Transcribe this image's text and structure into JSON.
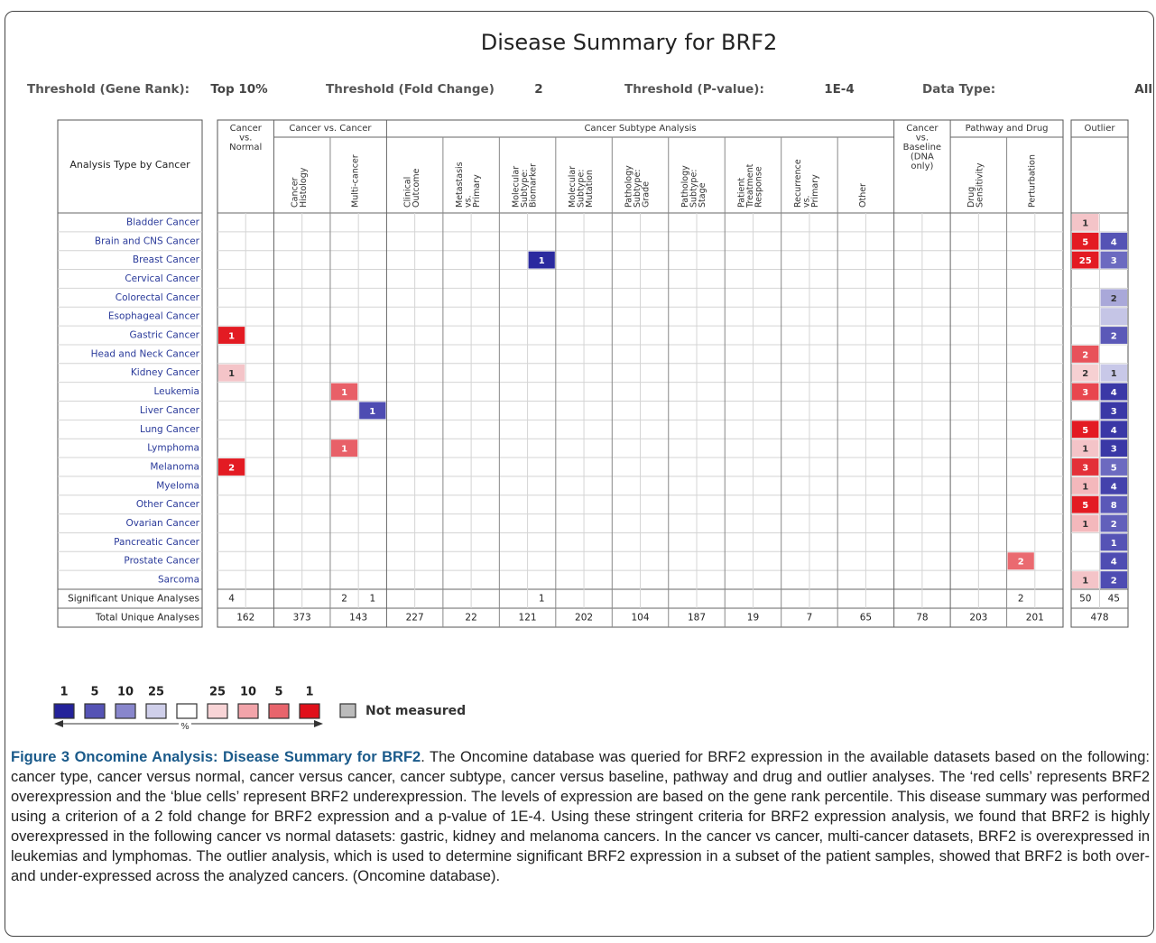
{
  "title": "Disease Summary for BRF2",
  "thresholds": [
    {
      "label": "Threshold (Gene Rank):",
      "value": "Top 10%"
    },
    {
      "label": "Threshold (Fold Change)",
      "value": "2"
    },
    {
      "label": "Threshold (P-value):",
      "value": "1E-4"
    },
    {
      "label": "Data Type:",
      "value": "All"
    }
  ],
  "table": {
    "corner": "Analysis Type by Cancer",
    "groups": [
      {
        "label_lines": [
          "Cancer",
          "vs.",
          "Normal"
        ],
        "columns": []
      },
      {
        "label_lines": [
          "Cancer vs. Cancer"
        ],
        "columns": [
          [
            "Cancer",
            "Histology"
          ],
          [
            "Multi-cancer"
          ]
        ]
      },
      {
        "label_lines": [
          "Cancer Subtype Analysis"
        ],
        "columns": [
          [
            "Clinical",
            "Outcome"
          ],
          [
            "Metastasis",
            "vs.",
            "Primary"
          ],
          [
            "Molecular",
            "Subtype:",
            "Biomarker"
          ],
          [
            "Molecular",
            "Subtype:",
            "Mutation"
          ],
          [
            "Pathology",
            "Subtype:",
            "Grade"
          ],
          [
            "Pathology",
            "Subtype:",
            "Stage"
          ],
          [
            "Patient",
            "Treatment",
            "Response"
          ],
          [
            "Recurrence",
            "vs.",
            "Primary"
          ],
          [
            "Other"
          ]
        ]
      },
      {
        "label_lines": [
          "Cancer",
          "vs.",
          "Baseline",
          "(DNA",
          "only)"
        ],
        "columns": []
      },
      {
        "label_lines": [
          "Pathway and Drug"
        ],
        "columns": [
          [
            "Drug",
            "Sensitivity"
          ],
          [
            "Perturbation"
          ]
        ]
      },
      {
        "label_lines": [
          "Outlier"
        ],
        "columns": []
      }
    ],
    "rows": [
      {
        "name": "Bladder Cancer",
        "cells": [
          {
            "column": 15,
            "direction": "over",
            "value": 1,
            "color": "#f4c4c8"
          }
        ]
      },
      {
        "name": "Brain and CNS Cancer",
        "cells": [
          {
            "column": 15,
            "direction": "over",
            "value": 5,
            "color": "#e31b23"
          },
          {
            "column": 15,
            "direction": "under",
            "value": 4,
            "color": "#5553b5"
          }
        ]
      },
      {
        "name": "Breast Cancer",
        "cells": [
          {
            "column": 5,
            "direction": "under",
            "value": 1,
            "color": "#2b2a9f"
          },
          {
            "column": 15,
            "direction": "over",
            "value": 25,
            "color": "#e31b23"
          },
          {
            "column": 15,
            "direction": "under",
            "value": 3,
            "color": "#6c6ac0"
          }
        ]
      },
      {
        "name": "Cervical Cancer",
        "cells": []
      },
      {
        "name": "Colorectal Cancer",
        "cells": [
          {
            "column": 15,
            "direction": "under",
            "value": 2,
            "color": "#a9a8d9"
          }
        ]
      },
      {
        "name": "Esophageal Cancer",
        "cells": [
          {
            "column": 15,
            "direction": "under",
            "color": "#c5c5e6"
          }
        ]
      },
      {
        "name": "Gastric Cancer",
        "cells": [
          {
            "column": 0,
            "direction": "over",
            "value": 1,
            "color": "#e31b23"
          },
          {
            "column": 15,
            "direction": "under",
            "value": 2,
            "color": "#5b59b8"
          }
        ]
      },
      {
        "name": "Head and Neck Cancer",
        "cells": [
          {
            "column": 15,
            "direction": "over",
            "value": 2,
            "color": "#e8525a"
          }
        ]
      },
      {
        "name": "Kidney Cancer",
        "cells": [
          {
            "column": 0,
            "direction": "over",
            "value": 1,
            "color": "#f4c4c8"
          },
          {
            "column": 15,
            "direction": "over",
            "value": 2,
            "color": "#f6d0d2"
          },
          {
            "column": 15,
            "direction": "under",
            "value": 1,
            "color": "#c8c8e8"
          }
        ]
      },
      {
        "name": "Leukemia",
        "cells": [
          {
            "column": 2,
            "direction": "over",
            "value": 1,
            "color": "#e86068"
          },
          {
            "column": 15,
            "direction": "over",
            "value": 3,
            "color": "#e8464e"
          },
          {
            "column": 15,
            "direction": "under",
            "value": 4,
            "color": "#3a38a6"
          }
        ]
      },
      {
        "name": "Liver Cancer",
        "cells": [
          {
            "column": 2,
            "direction": "under",
            "value": 1,
            "color": "#4e4cb2"
          },
          {
            "column": 15,
            "direction": "under",
            "value": 3,
            "color": "#3a38a6"
          }
        ]
      },
      {
        "name": "Lung Cancer",
        "cells": [
          {
            "column": 15,
            "direction": "over",
            "value": 5,
            "color": "#e31b23"
          },
          {
            "column": 15,
            "direction": "under",
            "value": 4,
            "color": "#3a38a6"
          }
        ]
      },
      {
        "name": "Lymphoma",
        "cells": [
          {
            "column": 2,
            "direction": "over",
            "value": 1,
            "color": "#e86068"
          },
          {
            "column": 15,
            "direction": "over",
            "value": 1,
            "color": "#f4c4c8"
          },
          {
            "column": 15,
            "direction": "under",
            "value": 3,
            "color": "#3a38a6"
          }
        ]
      },
      {
        "name": "Melanoma",
        "cells": [
          {
            "column": 0,
            "direction": "over",
            "value": 2,
            "color": "#e31b23"
          },
          {
            "column": 15,
            "direction": "over",
            "value": 3,
            "color": "#e33038"
          },
          {
            "column": 15,
            "direction": "under",
            "value": 5,
            "color": "#6c6ac0"
          }
        ]
      },
      {
        "name": "Myeloma",
        "cells": [
          {
            "column": 15,
            "direction": "over",
            "value": 1,
            "color": "#f4b8bc"
          },
          {
            "column": 15,
            "direction": "under",
            "value": 4,
            "color": "#4442ac"
          }
        ]
      },
      {
        "name": "Other Cancer",
        "cells": [
          {
            "column": 15,
            "direction": "over",
            "value": 5,
            "color": "#e31b23"
          },
          {
            "column": 15,
            "direction": "under",
            "value": 8,
            "color": "#5a58b8"
          }
        ]
      },
      {
        "name": "Ovarian Cancer",
        "cells": [
          {
            "column": 15,
            "direction": "over",
            "value": 1,
            "color": "#f4b8bc"
          },
          {
            "column": 15,
            "direction": "under",
            "value": 2,
            "color": "#6260bb"
          }
        ]
      },
      {
        "name": "Pancreatic Cancer",
        "cells": [
          {
            "column": 15,
            "direction": "under",
            "value": 1,
            "color": "#5553b5"
          }
        ]
      },
      {
        "name": "Prostate Cancer",
        "cells": [
          {
            "column": 14,
            "direction": "over",
            "value": 2,
            "color": "#ea6a70"
          },
          {
            "column": 15,
            "direction": "under",
            "value": 4,
            "color": "#4e4cb2"
          }
        ]
      },
      {
        "name": "Sarcoma",
        "cells": [
          {
            "column": 15,
            "direction": "over",
            "value": 1,
            "color": "#f4c4c8"
          },
          {
            "column": 15,
            "direction": "under",
            "value": 2,
            "color": "#4e4cb2"
          }
        ]
      }
    ],
    "significant": {
      "label": "Significant Unique Analyses",
      "cells": [
        {
          "column": 0,
          "direction": "over",
          "value": 4
        },
        {
          "column": 2,
          "direction": "over",
          "value": 2
        },
        {
          "column": 2,
          "direction": "under",
          "value": 1
        },
        {
          "column": 5,
          "direction": "under",
          "value": 1
        },
        {
          "column": 14,
          "direction": "over",
          "value": 2
        },
        {
          "column": 15,
          "direction": "over",
          "value": 50
        },
        {
          "column": 15,
          "direction": "under",
          "value": 45
        }
      ]
    },
    "total": {
      "label": "Total Unique Analyses",
      "values": [
        162,
        373,
        143,
        227,
        22,
        121,
        202,
        104,
        187,
        19,
        7,
        65,
        78,
        203,
        201,
        478
      ]
    }
  },
  "legend": {
    "items": [
      {
        "label": "1",
        "color": "#24229a"
      },
      {
        "label": "5",
        "color": "#5553b5"
      },
      {
        "label": "10",
        "color": "#8886cc"
      },
      {
        "label": "25",
        "color": "#cfcfea"
      },
      {
        "color": "#ffffff"
      },
      {
        "label": "25",
        "color": "#f8d4d6"
      },
      {
        "label": "10",
        "color": "#f2a4aa"
      },
      {
        "label": "5",
        "color": "#e8646c"
      },
      {
        "label": "1",
        "color": "#e0101a"
      }
    ],
    "percent": "%",
    "not_measured": "Not measured"
  },
  "caption": {
    "heading": "Figure 3 Oncomine Analysis: Disease Summary for BRF2",
    "text": ". The Oncomine database was queried for BRF2 expression in the available datasets based on the following: cancer type, cancer versus normal, cancer versus cancer, cancer subtype, cancer versus baseline, pathway and drug and outlier analyses. The ‘red cells’ represents BRF2 overexpression and the ‘blue cells’ represent BRF2 underexpression. The levels of expression are based on the gene rank percentile. This disease summary was performed using a criterion of a 2 fold change for BRF2 expression and a p-value of 1E-4. Using these stringent criteria for BRF2 expression analysis, we found that BRF2 is highly overexpressed in the following cancer vs normal datasets: gastric, kidney and melanoma cancers. In the cancer vs cancer, multi-cancer datasets, BRF2 is overexpressed in leukemias and lymphomas. The outlier analysis, which is used to determine significant BRF2 expression in a subset of the patient samples, showed that BRF2 is both over- and under-expressed across the analyzed cancers. (Oncomine database)."
  }
}
